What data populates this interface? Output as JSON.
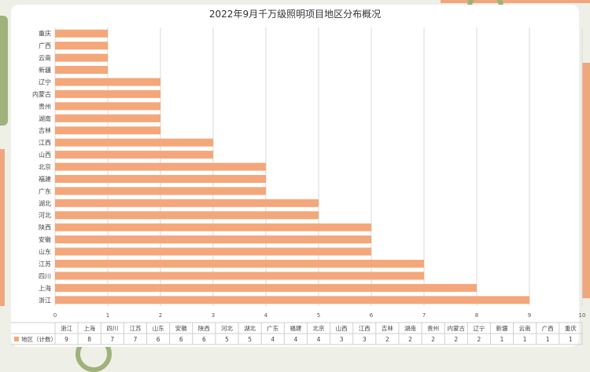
{
  "chart_data": {
    "type": "bar",
    "orientation": "horizontal",
    "title": "2022年9月千万级照明项目地区分布概况",
    "categories": [
      "浙江",
      "上海",
      "四川",
      "江苏",
      "山东",
      "安徽",
      "陕西",
      "河北",
      "湖北",
      "广东",
      "福建",
      "北京",
      "山西",
      "江西",
      "吉林",
      "湖南",
      "贵州",
      "内蒙古",
      "辽宁",
      "新疆",
      "云南",
      "广西",
      "重庆"
    ],
    "series": [
      {
        "name": "地区（计数）",
        "values": [
          9,
          8,
          7,
          7,
          6,
          6,
          6,
          5,
          5,
          4,
          4,
          4,
          3,
          3,
          2,
          2,
          2,
          2,
          2,
          1,
          1,
          1,
          1
        ]
      }
    ],
    "xlim": [
      0,
      10
    ],
    "xticks": [
      0,
      1,
      2,
      3,
      4,
      5,
      6,
      7,
      8,
      9,
      10
    ],
    "grid": true,
    "legend": "bottom-left (data table)",
    "bar_color": "#f4a77a"
  }
}
